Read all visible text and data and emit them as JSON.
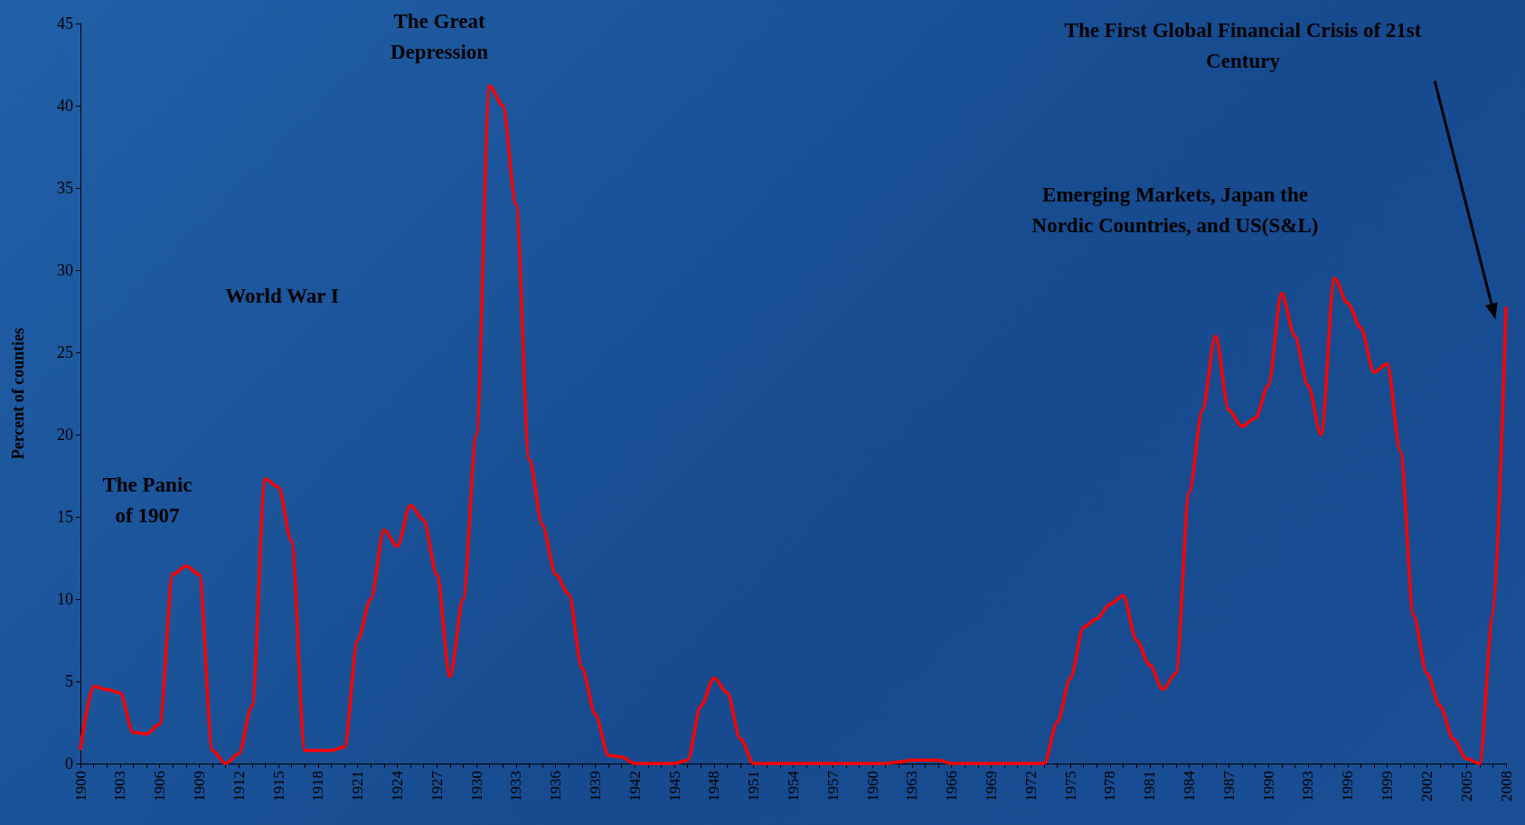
{
  "chart_data": {
    "type": "line",
    "ylabel": "Percent of counties",
    "x": [
      1900,
      1901,
      1902,
      1903,
      1904,
      1905,
      1906,
      1907,
      1908,
      1909,
      1910,
      1911,
      1912,
      1913,
      1914,
      1915,
      1916,
      1917,
      1918,
      1919,
      1920,
      1921,
      1922,
      1923,
      1924,
      1925,
      1926,
      1927,
      1928,
      1929,
      1930,
      1931,
      1932,
      1933,
      1934,
      1935,
      1936,
      1937,
      1938,
      1939,
      1940,
      1941,
      1942,
      1943,
      1944,
      1945,
      1946,
      1947,
      1948,
      1949,
      1950,
      1951,
      1952,
      1953,
      1954,
      1955,
      1956,
      1957,
      1958,
      1959,
      1960,
      1961,
      1962,
      1963,
      1964,
      1965,
      1966,
      1967,
      1968,
      1969,
      1970,
      1971,
      1972,
      1973,
      1974,
      1975,
      1976,
      1977,
      1978,
      1979,
      1980,
      1981,
      1982,
      1983,
      1984,
      1985,
      1986,
      1987,
      1988,
      1989,
      1990,
      1991,
      1992,
      1993,
      1994,
      1995,
      1996,
      1997,
      1998,
      1999,
      2000,
      2001,
      2002,
      2003,
      2004,
      2005,
      2006,
      2007,
      2008
    ],
    "series": [
      {
        "color": "#ff0000",
        "values": [
          0.9,
          4.7,
          4.5,
          4.3,
          1.9,
          1.8,
          2.4,
          11.5,
          12.0,
          11.5,
          0.8,
          0,
          0.6,
          3.5,
          17.3,
          16.8,
          13.5,
          0.8,
          0.8,
          0.8,
          1.0,
          7.5,
          10.0,
          14.2,
          13.2,
          15.7,
          14.8,
          11.5,
          5.3,
          10.0,
          20.0,
          41.2,
          40.0,
          34.0,
          18.5,
          14.5,
          11.5,
          10.3,
          5.8,
          3.0,
          0.5,
          0.4,
          0,
          0,
          0,
          0,
          0.2,
          3.5,
          5.2,
          4.3,
          1.5,
          0,
          0,
          0,
          0,
          0,
          0,
          0,
          0,
          0,
          0,
          0,
          0.1,
          0.2,
          0.2,
          0.2,
          0,
          0,
          0,
          0,
          0,
          0,
          0,
          0,
          2.5,
          5.2,
          8.3,
          8.8,
          9.7,
          10.2,
          7.5,
          6.0,
          4.5,
          5.5,
          16.5,
          21.5,
          26.0,
          21.5,
          20.5,
          21.0,
          23.0,
          28.6,
          26.0,
          23.0,
          20.0,
          29.5,
          28.0,
          26.5,
          23.8,
          24.3,
          19.0,
          9.0,
          5.5,
          3.5,
          1.5,
          0.3,
          0,
          9.0,
          27.7
        ]
      }
    ],
    "xlim": [
      1900,
      2008
    ],
    "xticks": [
      1900,
      {
        "value": 1901,
        "label": null
      },
      {
        "value": 1902,
        "label": null
      },
      1903,
      {
        "value": 1904,
        "label": null
      },
      {
        "value": 1905,
        "label": null
      },
      1906,
      {
        "value": 1907,
        "label": null
      },
      {
        "value": 1908,
        "label": null
      },
      1909,
      {
        "value": 1910,
        "label": null
      },
      {
        "value": 1911,
        "label": null
      },
      1912,
      {
        "value": 1913,
        "label": null
      },
      {
        "value": 1914,
        "label": null
      },
      1915,
      {
        "value": 1916,
        "label": null
      },
      {
        "value": 1917,
        "label": null
      },
      1918,
      {
        "value": 1919,
        "label": null
      },
      {
        "value": 1920,
        "label": null
      },
      1921,
      {
        "value": 1922,
        "label": null
      },
      {
        "value": 1923,
        "label": null
      },
      1924,
      {
        "value": 1925,
        "label": null
      },
      {
        "value": 1926,
        "label": null
      },
      1927,
      {
        "value": 1928,
        "label": null
      },
      {
        "value": 1929,
        "label": null
      },
      1930,
      {
        "value": 1931,
        "label": null
      },
      {
        "value": 1932,
        "label": null
      },
      1933,
      {
        "value": 1934,
        "label": null
      },
      {
        "value": 1935,
        "label": null
      },
      1936,
      {
        "value": 1937,
        "label": null
      },
      {
        "value": 1938,
        "label": null
      },
      1939,
      {
        "value": 1940,
        "label": null
      },
      {
        "value": 1941,
        "label": null
      },
      1942,
      {
        "value": 1943,
        "label": null
      },
      {
        "value": 1944,
        "label": null
      },
      1945,
      {
        "value": 1946,
        "label": null
      },
      {
        "value": 1947,
        "label": null
      },
      1948,
      {
        "value": 1949,
        "label": null
      },
      {
        "value": 1950,
        "label": null
      },
      1951,
      {
        "value": 1952,
        "label": null
      },
      {
        "value": 1953,
        "label": null
      },
      1954,
      {
        "value": 1955,
        "label": null
      },
      {
        "value": 1956,
        "label": null
      },
      1957,
      {
        "value": 1958,
        "label": null
      },
      {
        "value": 1959,
        "label": null
      },
      1960,
      {
        "value": 1961,
        "label": null
      },
      {
        "value": 1962,
        "label": null
      },
      1963,
      {
        "value": 1964,
        "label": null
      },
      {
        "value": 1965,
        "label": null
      },
      1966,
      {
        "value": 1967,
        "label": null
      },
      {
        "value": 1968,
        "label": null
      },
      1969,
      {
        "value": 1970,
        "label": null
      },
      {
        "value": 1971,
        "label": null
      },
      1972,
      {
        "value": 1973,
        "label": null
      },
      {
        "value": 1974,
        "label": null
      },
      1975,
      {
        "value": 1976,
        "label": null
      },
      {
        "value": 1977,
        "label": null
      },
      1978,
      {
        "value": 1979,
        "label": null
      },
      {
        "value": 1980,
        "label": null
      },
      1981,
      {
        "value": 1982,
        "label": null
      },
      {
        "value": 1983,
        "label": null
      },
      1984,
      {
        "value": 1985,
        "label": null
      },
      {
        "value": 1986,
        "label": null
      },
      1987,
      {
        "value": 1988,
        "label": null
      },
      {
        "value": 1989,
        "label": null
      },
      1990,
      {
        "value": 1991,
        "label": null
      },
      {
        "value": 1992,
        "label": null
      },
      1993,
      {
        "value": 1994,
        "label": null
      },
      {
        "value": 1995,
        "label": null
      },
      1996,
      {
        "value": 1997,
        "label": null
      },
      {
        "value": 1998,
        "label": null
      },
      1999,
      {
        "value": 2000,
        "label": null
      },
      {
        "value": 2001,
        "label": null
      },
      2002,
      {
        "value": 2003,
        "label": null
      },
      {
        "value": 2004,
        "label": null
      },
      2005,
      {
        "value": 2006,
        "label": null
      },
      {
        "value": 2007,
        "label": null
      },
      2008
    ],
    "ylim": [
      0,
      45
    ],
    "yticks": [
      0,
      5,
      10,
      15,
      20,
      25,
      30,
      35,
      40,
      45
    ],
    "grid": false,
    "marker": "none",
    "line_style": "solid",
    "annotations": [
      "The Panic\nof 1907",
      "World War I",
      "The Great\nDepression",
      "Emerging Markets, Japan the\nNordic Countries, and US(S&L)",
      "The First Global Financial Crisis of 21st\nCentury"
    ]
  }
}
